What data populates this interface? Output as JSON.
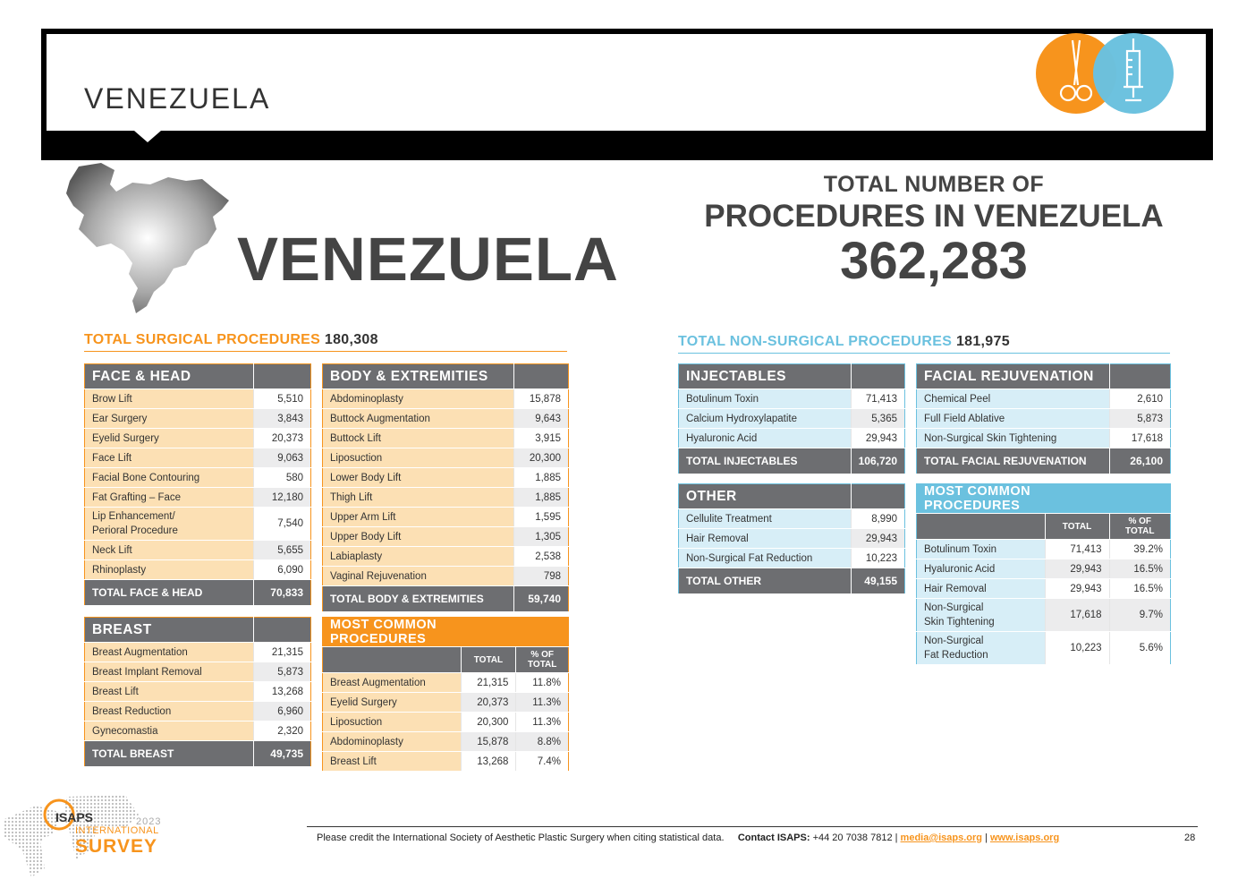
{
  "header": {
    "title": "VENEZUELA"
  },
  "country_name": "VENEZUELA",
  "total": {
    "label_line1": "TOTAL NUMBER OF",
    "label_line2": "PROCEDURES IN VENEZUELA",
    "value": "362,283"
  },
  "surgical": {
    "title": "TOTAL SURGICAL PROCEDURES",
    "total": "180,308",
    "face_head": {
      "header": "FACE & HEAD",
      "rows": [
        {
          "name": "Brow Lift",
          "value": "5,510"
        },
        {
          "name": "Ear Surgery",
          "value": "3,843"
        },
        {
          "name": "Eyelid Surgery",
          "value": "20,373"
        },
        {
          "name": "Face Lift",
          "value": "9,063"
        },
        {
          "name": "Facial Bone Contouring",
          "value": "580"
        },
        {
          "name": "Fat Grafting – Face",
          "value": "12,180"
        },
        {
          "name": "Lip Enhancement/",
          "name2": "Perioral Procedure",
          "value": "7,540"
        },
        {
          "name": "Neck Lift",
          "value": "5,655"
        },
        {
          "name": "Rhinoplasty",
          "value": "6,090"
        }
      ],
      "total_label": "TOTAL FACE & HEAD",
      "total_value": "70,833"
    },
    "body": {
      "header": "BODY & EXTREMITIES",
      "rows": [
        {
          "name": "Abdominoplasty",
          "value": "15,878"
        },
        {
          "name": "Buttock Augmentation",
          "value": "9,643"
        },
        {
          "name": "Buttock Lift",
          "value": "3,915"
        },
        {
          "name": "Liposuction",
          "value": "20,300"
        },
        {
          "name": "Lower Body Lift",
          "value": "1,885"
        },
        {
          "name": "Thigh Lift",
          "value": "1,885"
        },
        {
          "name": "Upper Arm Lift",
          "value": "1,595"
        },
        {
          "name": "Upper Body Lift",
          "value": "1,305"
        },
        {
          "name": "Labiaplasty",
          "value": "2,538"
        },
        {
          "name": "Vaginal Rejuvenation",
          "value": "798"
        }
      ],
      "total_label": "TOTAL BODY & EXTREMITIES",
      "total_value": "59,740"
    },
    "breast": {
      "header": "BREAST",
      "rows": [
        {
          "name": "Breast Augmentation",
          "value": "21,315"
        },
        {
          "name": "Breast Implant Removal",
          "value": "5,873"
        },
        {
          "name": "Breast Lift",
          "value": "13,268"
        },
        {
          "name": "Breast Reduction",
          "value": "6,960"
        },
        {
          "name": "Gynecomastia",
          "value": "2,320"
        }
      ],
      "total_label": "TOTAL BREAST",
      "total_value": "49,735"
    },
    "most_common": {
      "header": "MOST COMMON PROCEDURES",
      "col_total": "TOTAL",
      "col_pct1": "% OF",
      "col_pct2": "TOTAL",
      "rows": [
        {
          "name": "Breast Augmentation",
          "value": "21,315",
          "pct": "11.8%"
        },
        {
          "name": "Eyelid Surgery",
          "value": "20,373",
          "pct": "11.3%"
        },
        {
          "name": "Liposuction",
          "value": "20,300",
          "pct": "11.3%"
        },
        {
          "name": "Abdominoplasty",
          "value": "15,878",
          "pct": "8.8%"
        },
        {
          "name": "Breast Lift",
          "value": "13,268",
          "pct": "7.4%"
        }
      ]
    }
  },
  "nonsurgical": {
    "title": "TOTAL NON-SURGICAL PROCEDURES",
    "total": "181,975",
    "injectables": {
      "header": "INJECTABLES",
      "rows": [
        {
          "name": "Botulinum Toxin",
          "value": "71,413"
        },
        {
          "name": "Calcium Hydroxylapatite",
          "value": "5,365"
        },
        {
          "name": "Hyaluronic Acid",
          "value": "29,943"
        }
      ],
      "total_label": "TOTAL INJECTABLES",
      "total_value": "106,720"
    },
    "facial": {
      "header": "FACIAL REJUVENATION",
      "rows": [
        {
          "name": "Chemical Peel",
          "value": "2,610"
        },
        {
          "name": "Full Field Ablative",
          "value": "5,873"
        },
        {
          "name": "Non-Surgical Skin Tightening",
          "value": "17,618"
        }
      ],
      "total_label": "TOTAL FACIAL REJUVENATION",
      "total_value": "26,100"
    },
    "other": {
      "header": "OTHER",
      "rows": [
        {
          "name": "Cellulite Treatment",
          "value": "8,990"
        },
        {
          "name": "Hair Removal",
          "value": "29,943"
        },
        {
          "name": "Non-Surgical Fat Reduction",
          "value": "10,223"
        }
      ],
      "total_label": "TOTAL OTHER",
      "total_value": "49,155"
    },
    "most_common": {
      "header": "MOST COMMON PROCEDURES",
      "col_total": "TOTAL",
      "col_pct1": "% OF",
      "col_pct2": "TOTAL",
      "rows": [
        {
          "name": "Botulinum Toxin",
          "value": "71,413",
          "pct": "39.2%"
        },
        {
          "name": "Hyaluronic Acid",
          "value": "29,943",
          "pct": "16.5%"
        },
        {
          "name": "Hair Removal",
          "value": "29,943",
          "pct": "16.5%"
        },
        {
          "name": "Non-Surgical",
          "name2": "Skin Tightening",
          "value": "17,618",
          "pct": "9.7%"
        },
        {
          "name": "Non-Surgical",
          "name2": "Fat Reduction",
          "value": "10,223",
          "pct": "5.6%"
        }
      ]
    }
  },
  "footer": {
    "credit": "Please credit the International Society of Aesthetic Plastic Surgery when citing statistical data.",
    "contact_label": "Contact ISAPS:",
    "phone": "+44 20 7038 7812 |",
    "email": "media@isaps.org",
    "sep": "|",
    "website": "www.isaps.org",
    "page": "28"
  },
  "logo": {
    "name": "ISAPS",
    "year": "2023",
    "line1": "INTERNATIONAL",
    "line2": "SURVEY"
  },
  "colors": {
    "surgical": "#f7941d",
    "nonsurgical": "#6bc1df",
    "header_gray": "#6d6e71"
  }
}
